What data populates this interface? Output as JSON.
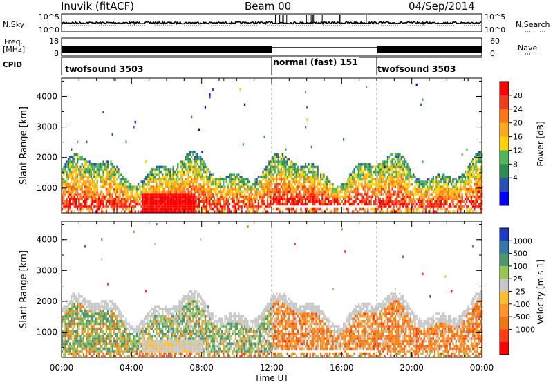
{
  "header": {
    "station": "Inuvik (fitACF)",
    "beam": "Beam 00",
    "date": "04/Sep/2014"
  },
  "top_panels": {
    "nsky_label": "N.Sky",
    "nsearch_label": "N.Search",
    "nsky_ticks": [
      "10^5",
      "10^0"
    ],
    "nsearch_ticks": [
      "10^5",
      "10^0"
    ],
    "freq_label_1": "Freq.",
    "freq_label_2": "[MHz]",
    "freq_ticks": [
      "18",
      "8"
    ],
    "nave_ticks": [
      "60",
      "0"
    ],
    "nave_label": "Nave",
    "cpid_label": "CPID"
  },
  "cpid_modes": [
    {
      "label": "twofsound 3503",
      "start_hour": 0
    },
    {
      "label": "normal (fast) 151",
      "start_hour": 12
    },
    {
      "label": "twofsound 3503",
      "start_hour": 18
    }
  ],
  "x_axis": {
    "ticks": [
      "00:00",
      "04:00",
      "08:00",
      "12:00",
      "16:00",
      "20:00",
      "00:00"
    ],
    "title": "Time UT"
  },
  "power_colorbar": {
    "title": "Power [dB]",
    "ticks": [
      "28",
      "24",
      "20",
      "16",
      "12",
      "8",
      "4"
    ],
    "colors": [
      "#ff0000",
      "#f23c1e",
      "#ff7814",
      "#ffaa1e",
      "#ffd200",
      "#50b45a",
      "#2d8c50",
      "#2850b4",
      "#0000ff"
    ]
  },
  "velocity_colorbar": {
    "title": "Velocity [m s-1]",
    "ticks": [
      "1000",
      "500",
      "100",
      "25",
      "-25",
      "-100",
      "-500",
      "-1000"
    ],
    "colors": [
      "#1e3cc8",
      "#3278aa",
      "#4b966e",
      "#96c850",
      "#c8c8c8",
      "#ffbe32",
      "#ff9628",
      "#f07814",
      "#ff3c14",
      "#ff0000"
    ]
  },
  "chart_data": [
    {
      "type": "heatmap",
      "name": "power",
      "ylabel": "Slant Range [km]",
      "yticks": [
        "4000",
        "3000",
        "2000",
        "1000"
      ],
      "ylim": [
        180,
        4600
      ],
      "xlim_hours": [
        0,
        24
      ],
      "regions": [
        {
          "t": [
            0,
            4.3
          ],
          "r": [
            200,
            2100
          ],
          "level": "mixed-low"
        },
        {
          "t": [
            4.6,
            7.6
          ],
          "r": [
            200,
            900
          ],
          "level": "high"
        },
        {
          "t": [
            7.6,
            12
          ],
          "r": [
            200,
            1700
          ],
          "level": "mixed-high"
        },
        {
          "t": [
            12,
            24
          ],
          "r": [
            600,
            2300
          ],
          "level": "mixed"
        }
      ]
    },
    {
      "type": "heatmap",
      "name": "velocity",
      "ylabel": "Slant Range [km]",
      "yticks": [
        "4000",
        "3000",
        "2000",
        "1000"
      ],
      "ylim": [
        180,
        4600
      ],
      "xlim_hours": [
        0,
        24
      ],
      "regions": [
        {
          "t": [
            0,
            4
          ],
          "r": [
            200,
            2400
          ],
          "level": "mixed"
        },
        {
          "t": [
            4.6,
            8
          ],
          "r": [
            400,
            800
          ],
          "level": "low"
        },
        {
          "t": [
            8,
            12
          ],
          "r": [
            200,
            2400
          ],
          "level": "mixed"
        },
        {
          "t": [
            12,
            24
          ],
          "r": [
            600,
            2200
          ],
          "level": "negative"
        }
      ]
    }
  ]
}
